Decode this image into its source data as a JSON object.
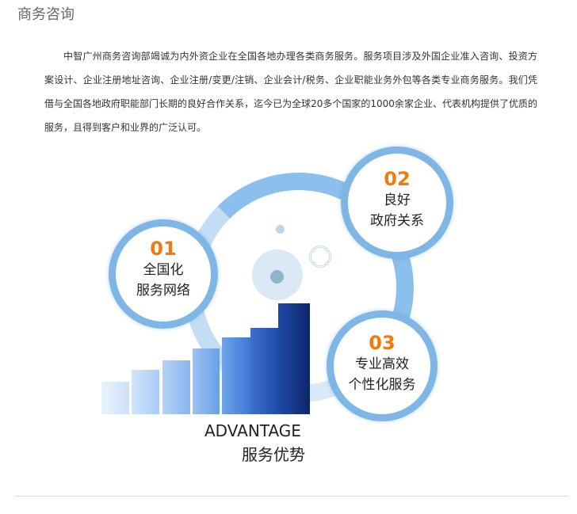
{
  "title": "商务咨询",
  "paragraph": "中智广州商务咨询部竭诚为内外资企业在全国各地办理各类商务服务。服务项目涉及外国企业准入咨询、投资方案设计、企业注册地址咨询、企业注册/变更/注销、企业会计/税务、企业职能业务外包等各类专业商务服务。我们凭借与全国各地政府职能部门长期的良好合作关系，迄今已为全球20多个国家的1000余家企业、代表机构提供了优质的服务，且得到客户和业界的广泛认可。",
  "advantages": [
    {
      "num": "01",
      "line1": "全国化",
      "line2": "服务网络"
    },
    {
      "num": "02",
      "line1": "良好",
      "line2": "政府关系"
    },
    {
      "num": "03",
      "line1": "专业高效",
      "line2": "个性化服务"
    }
  ],
  "advantage_en": "ADVANTAGE",
  "advantage_cn": "服务优势",
  "colors": {
    "accent": "#f07a10",
    "ring": "#7eb6e6"
  }
}
